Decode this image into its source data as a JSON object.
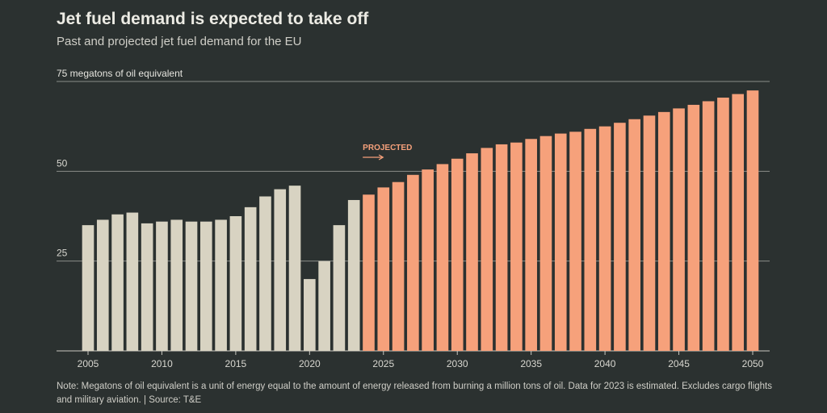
{
  "header": {
    "title": "Jet fuel demand is expected to take off",
    "subtitle": "Past and projected jet fuel demand for the EU"
  },
  "footer": {
    "note": "Note: Megatons of oil equivalent is a unit of energy equal to the amount of energy released from burning a million tons of oil. Data for 2023 is estimated. Excludes cargo flights and military aviation. | Source: T&E"
  },
  "colors": {
    "historical": "#d8d3c2",
    "projected": "#f6a17b",
    "background": "#2b3130",
    "gridline": "#8a8d88"
  },
  "chart_data": {
    "type": "bar",
    "title": "Jet fuel demand is expected to take off",
    "subtitle": "Past and projected jet fuel demand for the EU",
    "ylabel": "75 megatons of oil equivalent",
    "ylim": [
      0,
      75
    ],
    "yticks": [
      25,
      50,
      75
    ],
    "ytick_labels": [
      "25",
      "50",
      "75 megatons of oil equivalent"
    ],
    "xticks": [
      2005,
      2010,
      2015,
      2020,
      2025,
      2030,
      2035,
      2040,
      2045,
      2050
    ],
    "projected_label": "PROJECTED",
    "projected_start": 2024,
    "series": [
      {
        "name": "Historical",
        "x": [
          2005,
          2006,
          2007,
          2008,
          2009,
          2010,
          2011,
          2012,
          2013,
          2014,
          2015,
          2016,
          2017,
          2018,
          2019,
          2020,
          2021,
          2022,
          2023
        ],
        "values": [
          35,
          36.5,
          38,
          38.5,
          35.5,
          36,
          36.5,
          36,
          36,
          36.5,
          37.5,
          40,
          43,
          45,
          46,
          20,
          25,
          35,
          42
        ]
      },
      {
        "name": "Projected",
        "x": [
          2024,
          2025,
          2026,
          2027,
          2028,
          2029,
          2030,
          2031,
          2032,
          2033,
          2034,
          2035,
          2036,
          2037,
          2038,
          2039,
          2040,
          2041,
          2042,
          2043,
          2044,
          2045,
          2046,
          2047,
          2048,
          2049,
          2050
        ],
        "values": [
          43.5,
          45.5,
          47,
          49,
          50.5,
          52,
          53.5,
          55,
          56.5,
          57.5,
          58,
          59,
          59.8,
          60.5,
          61,
          61.8,
          62.5,
          63.5,
          64.5,
          65.5,
          66.5,
          67.5,
          68.5,
          69.5,
          70.5,
          71.5,
          72.5
        ]
      }
    ]
  }
}
